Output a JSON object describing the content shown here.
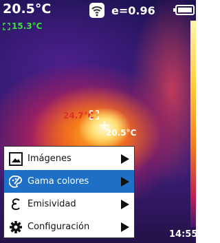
{
  "status_bar": {
    "temperature": "20.5°C",
    "min_temperature": "15.3°C",
    "emissivity": "e=0.96"
  },
  "markers": {
    "hot_spot": "24.7°C",
    "center": "20.5°C"
  },
  "menu": {
    "items": [
      "Imágenes",
      "Gama colores",
      "Emisividad",
      "Configuración"
    ],
    "selected": 1
  },
  "clock": "14:55"
}
